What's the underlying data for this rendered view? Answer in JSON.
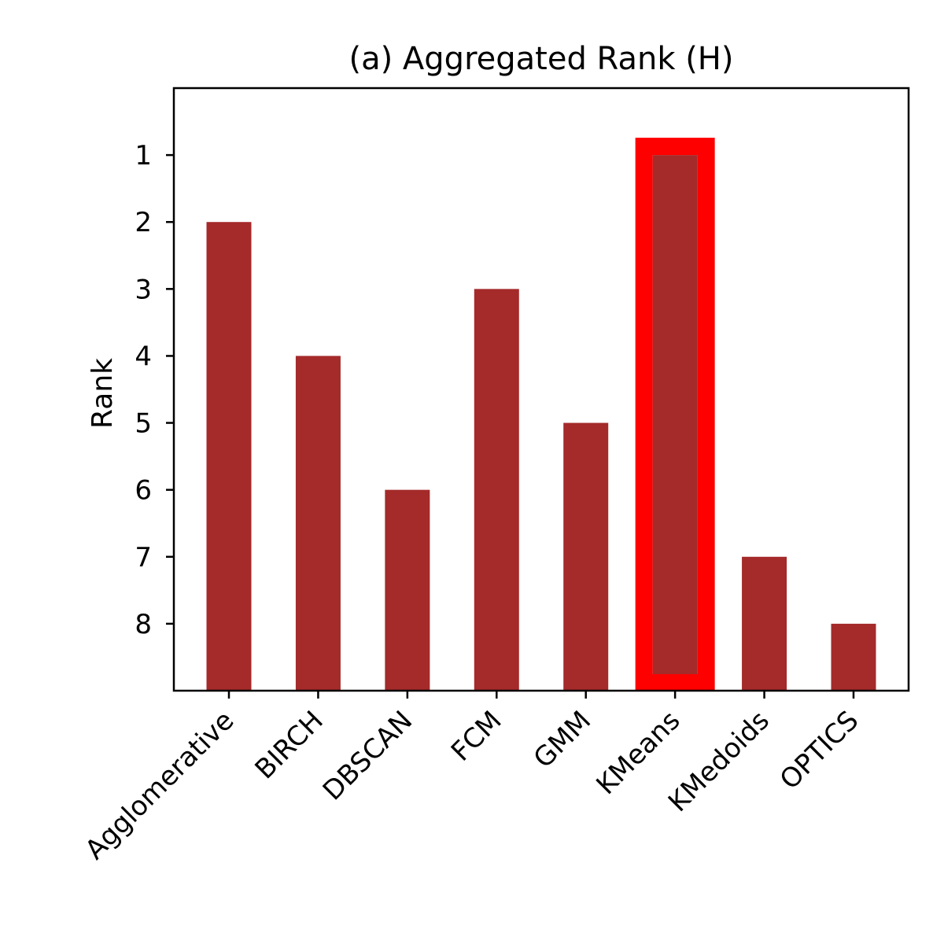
{
  "chart_data": {
    "type": "bar",
    "title": "(a) Aggregated Rank (H)",
    "xlabel": "",
    "ylabel": "Rank",
    "categories": [
      "Agglomerative",
      "BIRCH",
      "DBSCAN",
      "FCM",
      "GMM",
      "KMeans",
      "KMedoids",
      "OPTICS"
    ],
    "values": [
      2,
      4,
      6,
      3,
      5,
      1,
      7,
      8
    ],
    "yticks": [
      1,
      2,
      3,
      4,
      5,
      6,
      7,
      8
    ],
    "ylim": [
      0,
      9
    ],
    "y_inverted": true,
    "bar_color": "#a52a2a",
    "highlight": {
      "category": "KMeans",
      "outline_color": "#ff0000"
    },
    "grid": false,
    "legend": "none"
  }
}
